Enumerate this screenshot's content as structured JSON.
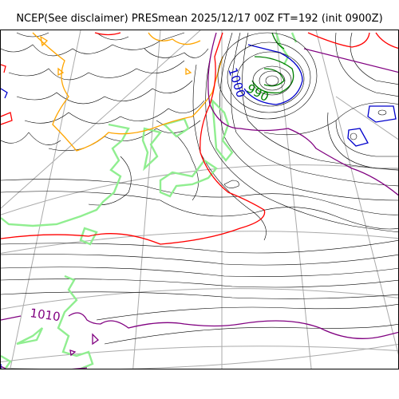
{
  "title": "NCEP(See disclaimer) PRESmean 2025/12/17 00Z FT=192 (init 0900Z)",
  "map": {
    "contour_labels": [
      {
        "text": "1000",
        "color": "#0000cc"
      },
      {
        "text": "990",
        "color": "#008000"
      },
      {
        "text": "1010",
        "color": "#800080"
      }
    ],
    "colors": {
      "isobar_thin": "#000000",
      "contour_990": "#008000",
      "contour_1000": "#0000cc",
      "contour_1010": "#800080",
      "contour_red": "#ff0000",
      "contour_orange": "#ffa500",
      "coastline": "#90ee90",
      "graticule": "#aaaaaa"
    }
  }
}
